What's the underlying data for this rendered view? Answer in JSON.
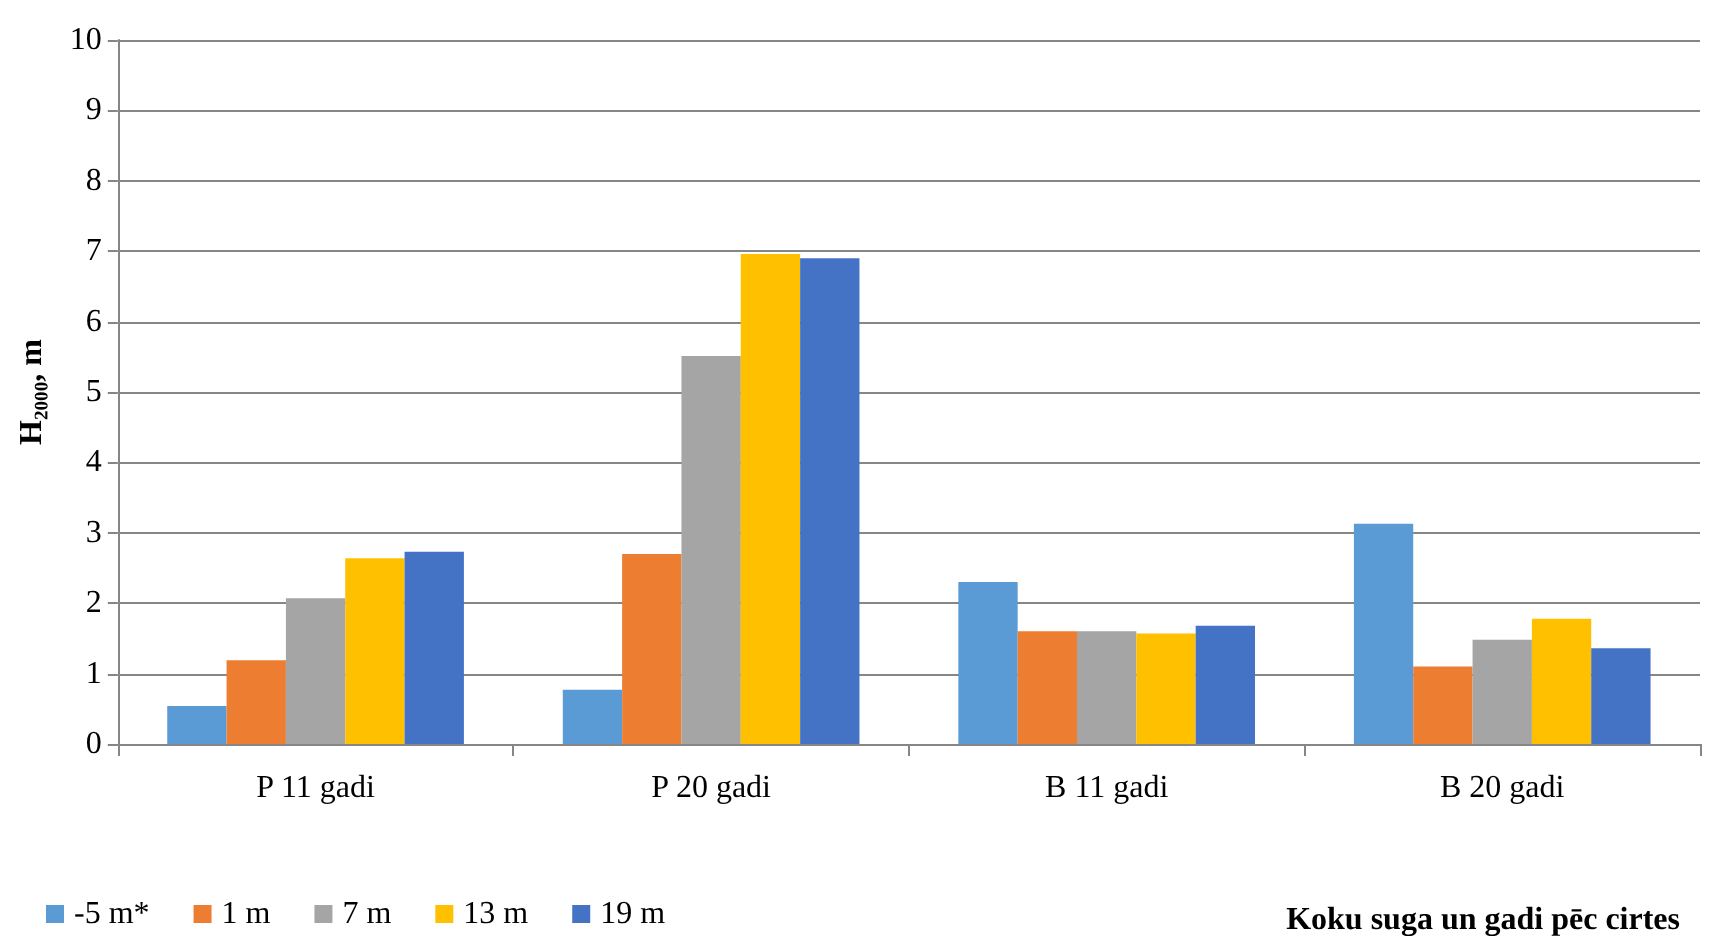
{
  "chart_data": {
    "type": "bar",
    "xlabel": "Koku suga un gadi pēc cirtes",
    "ylabel": "H₂₀₀₀, m",
    "categories": [
      "P 11 gadi",
      "P 20 gadi",
      "B 11 gadi",
      "B 20 gadi"
    ],
    "series": [
      {
        "name": "-5 m*",
        "color": "#5b9bd5",
        "values": [
          0.54,
          0.77,
          2.3,
          3.13
        ]
      },
      {
        "name": "1 m",
        "color": "#ed7d31",
        "values": [
          1.19,
          2.7,
          1.6,
          1.1
        ]
      },
      {
        "name": "7 m",
        "color": "#a5a5a5",
        "values": [
          2.07,
          5.51,
          1.6,
          1.48
        ]
      },
      {
        "name": "13 m",
        "color": "#ffc000",
        "values": [
          2.64,
          6.96,
          1.57,
          1.78
        ]
      },
      {
        "name": "19 m",
        "color": "#4472c4",
        "values": [
          2.73,
          6.9,
          1.68,
          1.36
        ]
      }
    ],
    "ylim": [
      0,
      10
    ],
    "yticks": [
      0,
      1,
      2,
      3,
      4,
      5,
      6,
      7,
      8,
      9,
      10
    ],
    "grid": "y",
    "legend": "bottom left"
  }
}
